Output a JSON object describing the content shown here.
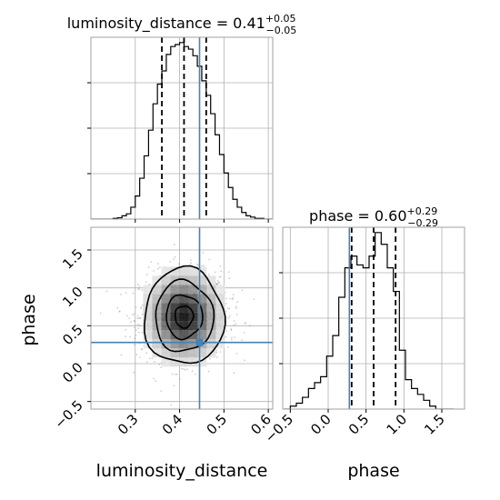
{
  "chart_data": {
    "type": "corner",
    "parameters": [
      "luminosity_distance",
      "phase"
    ],
    "truth": {
      "luminosity_distance": 0.445,
      "phase": 0.28
    },
    "top_left": {
      "type": "histogram",
      "parameter": "luminosity_distance",
      "title_main": "luminosity_distance = 0.41",
      "title_sup": "+0.05",
      "title_sub": "−0.05",
      "xlim": [
        0.2,
        0.61
      ],
      "bin_edges": [
        0.2,
        0.21,
        0.22,
        0.23,
        0.24,
        0.25,
        0.26,
        0.27,
        0.28,
        0.29,
        0.3,
        0.31,
        0.32,
        0.33,
        0.34,
        0.35,
        0.36,
        0.37,
        0.38,
        0.39,
        0.4,
        0.41,
        0.42,
        0.43,
        0.44,
        0.45,
        0.46,
        0.47,
        0.48,
        0.49,
        0.5,
        0.51,
        0.52,
        0.53,
        0.54,
        0.55,
        0.56,
        0.57,
        0.58,
        0.59,
        0.6,
        0.61
      ],
      "counts": [
        0,
        0,
        0,
        0,
        0,
        1,
        2,
        5,
        8,
        18,
        35,
        62,
        96,
        135,
        175,
        205,
        225,
        250,
        262,
        265,
        268,
        262,
        258,
        248,
        232,
        210,
        188,
        160,
        128,
        98,
        70,
        48,
        30,
        18,
        10,
        5,
        3,
        1,
        1,
        0,
        0
      ],
      "quantiles": [
        0.36,
        0.41,
        0.46
      ]
    },
    "bottom_right": {
      "type": "histogram",
      "parameter": "phase",
      "title_main": "phase = 0.60",
      "title_sup": "+0.29",
      "title_sub": "−0.29",
      "xlim": [
        -0.6,
        1.8
      ],
      "xticks": [
        "−0.5",
        "0.0",
        "0.5",
        "1.0",
        "1.5"
      ],
      "xtick_values": [
        -0.5,
        0.0,
        0.5,
        1.0,
        1.5
      ],
      "xlabel": "phase",
      "bin_edges": [
        -0.58,
        -0.5,
        -0.42,
        -0.34,
        -0.26,
        -0.18,
        -0.1,
        -0.02,
        0.06,
        0.14,
        0.22,
        0.3,
        0.38,
        0.46,
        0.54,
        0.62,
        0.7,
        0.78,
        0.86,
        0.94,
        1.02,
        1.1,
        1.18,
        1.26,
        1.34,
        1.42,
        1.5,
        1.58,
        1.66
      ],
      "counts": [
        0,
        1,
        2,
        4,
        7,
        9,
        11,
        18,
        25,
        38,
        48,
        52,
        49,
        48,
        52,
        60,
        56,
        48,
        40,
        20,
        10,
        7,
        5,
        3,
        1,
        0,
        0,
        0
      ],
      "quantiles": [
        0.31,
        0.6,
        0.89
      ]
    },
    "bottom_left": {
      "type": "2d-density",
      "xlim": [
        0.2,
        0.61
      ],
      "ylim": [
        -0.6,
        1.8
      ],
      "xticks": [
        "0.3",
        "0.4",
        "0.5",
        "0.6"
      ],
      "xtick_values": [
        0.3,
        0.4,
        0.5,
        0.6
      ],
      "yticks": [
        "−0.5",
        "0.0",
        "0.5",
        "1.0",
        "1.5"
      ],
      "ytick_values": [
        -0.5,
        0.0,
        0.5,
        1.0,
        1.5
      ],
      "xlabel": "luminosity_distance",
      "ylabel": "phase",
      "center": [
        0.41,
        0.62
      ],
      "spread": [
        0.05,
        0.29
      ]
    },
    "colors": {
      "truth": "#4682b4",
      "hist": "#000000",
      "grid": "#b0b0b0",
      "frame": "#a0a0a0",
      "scatter": "#909090"
    },
    "grid": true
  }
}
